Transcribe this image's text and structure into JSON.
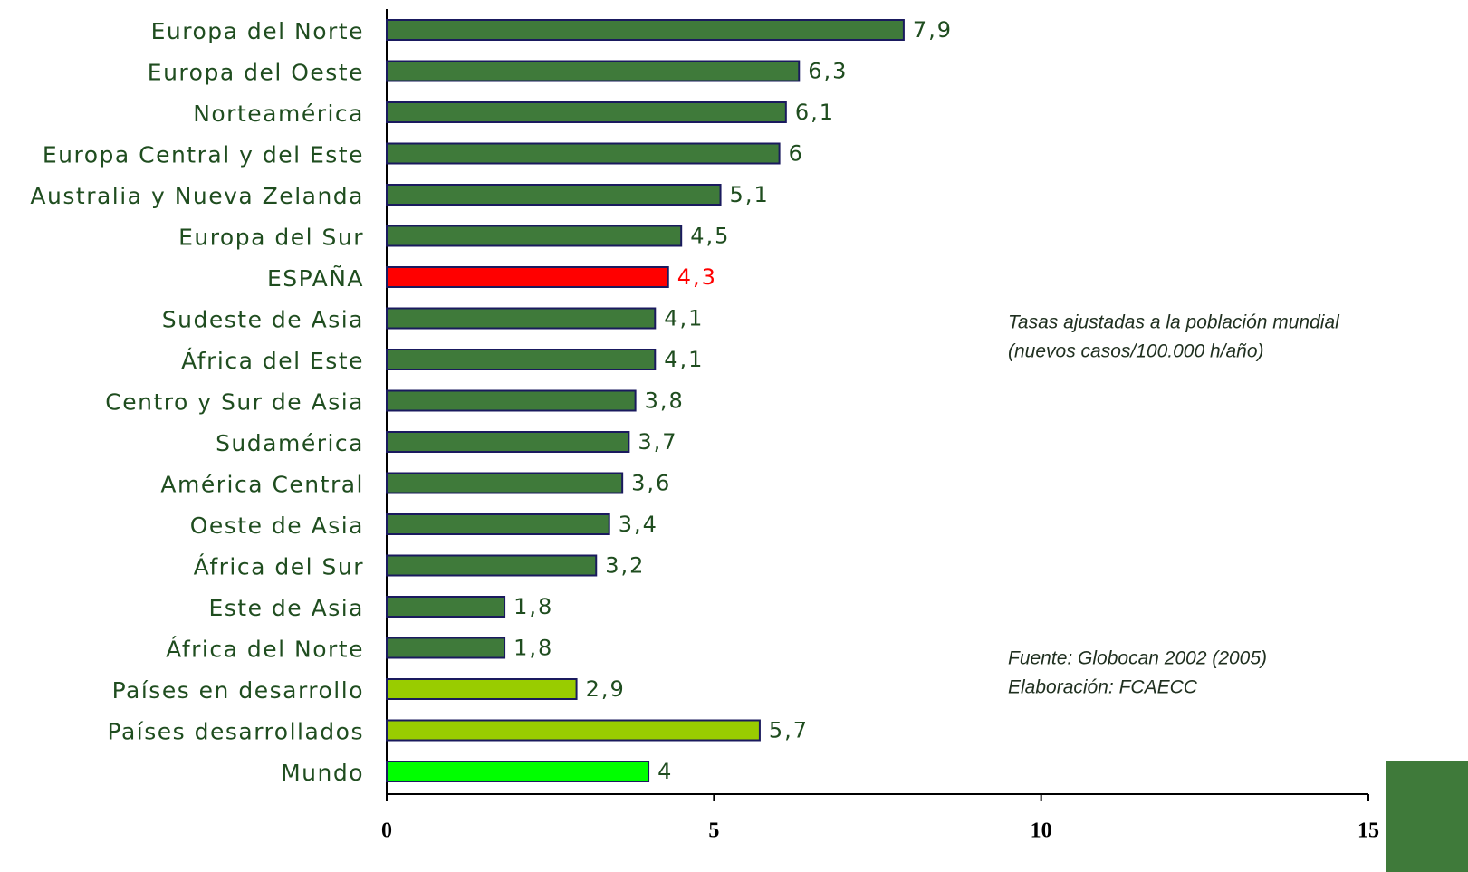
{
  "chart_data": {
    "type": "bar",
    "orientation": "horizontal",
    "categories": [
      "Europa del Norte",
      "Europa del Oeste",
      "Norteamérica",
      "Europa Central y del Este",
      "Australia y Nueva Zelanda",
      "Europa del Sur",
      "ESPAÑA",
      "Sudeste de Asia",
      "África del Este",
      "Centro y Sur de Asia",
      "Sudamérica",
      "América Central",
      "Oeste de Asia",
      "África del Sur",
      "Este de Asia",
      "África del Norte",
      "Países en desarrollo",
      "Países desarrollados",
      "Mundo"
    ],
    "values": [
      7.9,
      6.3,
      6.1,
      6,
      5.1,
      4.5,
      4.3,
      4.1,
      4.1,
      3.8,
      3.7,
      3.6,
      3.4,
      3.2,
      1.8,
      1.8,
      2.9,
      5.7,
      4
    ],
    "value_labels": [
      "7,9",
      "6,3",
      "6,1",
      "6",
      "5,1",
      "4,5",
      "4,3",
      "4,1",
      "4,1",
      "3,8",
      "3,7",
      "3,6",
      "3,4",
      "3,2",
      "1,8",
      "1,8",
      "2,9",
      "5,7",
      "4"
    ],
    "colors": [
      "#3f7a3a",
      "#3f7a3a",
      "#3f7a3a",
      "#3f7a3a",
      "#3f7a3a",
      "#3f7a3a",
      "#ff0000",
      "#3f7a3a",
      "#3f7a3a",
      "#3f7a3a",
      "#3f7a3a",
      "#3f7a3a",
      "#3f7a3a",
      "#3f7a3a",
      "#3f7a3a",
      "#3f7a3a",
      "#99cc00",
      "#99cc00",
      "#00ff00"
    ],
    "value_label_colors": [
      "#1f4d1f",
      "#1f4d1f",
      "#1f4d1f",
      "#1f4d1f",
      "#1f4d1f",
      "#1f4d1f",
      "#ff0000",
      "#1f4d1f",
      "#1f4d1f",
      "#1f4d1f",
      "#1f4d1f",
      "#1f4d1f",
      "#1f4d1f",
      "#1f4d1f",
      "#1f4d1f",
      "#1f4d1f",
      "#1f4d1f",
      "#1f4d1f",
      "#1f4d1f"
    ],
    "xlim": [
      0,
      15
    ],
    "xticks": [
      0,
      5,
      10,
      15
    ],
    "annotations": [
      [
        "Tasas ajustadas a la población mundial",
        "(nuevos casos/100.000 h/año)"
      ],
      [
        "Fuente: Globocan 2002 (2005)",
        "Elaboración: FCAECC"
      ]
    ]
  }
}
